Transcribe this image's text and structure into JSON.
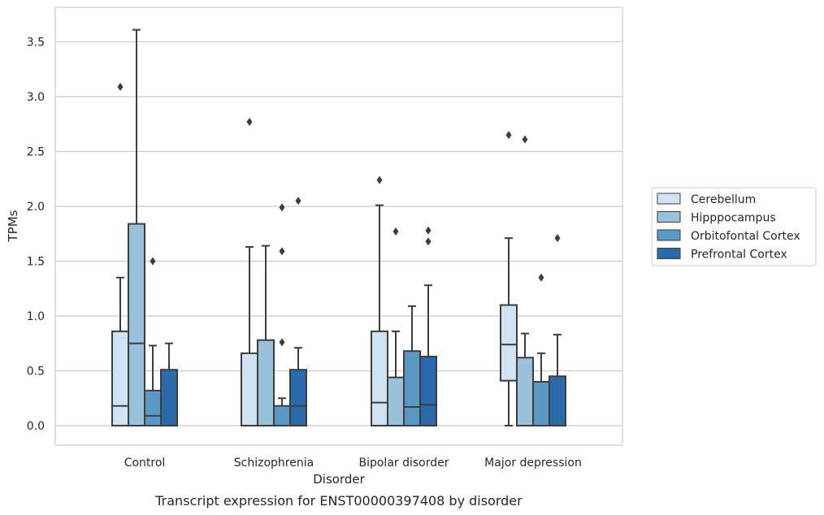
{
  "chart_data": {
    "type": "box",
    "caption": "Transcript expression for ENST00000397408 by disorder",
    "xlabel": "Disorder",
    "ylabel": "TPMs",
    "ylim": [
      -0.17,
      3.77
    ],
    "yticks": [
      0.0,
      0.5,
      1.0,
      1.5,
      2.0,
      2.5,
      3.0,
      3.5
    ],
    "ytick_labels": [
      "0.0",
      "0.5",
      "1.0",
      "1.5",
      "2.0",
      "2.5",
      "3.0",
      "3.5"
    ],
    "grid": "horizontal",
    "legend_position": "right",
    "categories": [
      "Control",
      "Schizophrenia",
      "Bipolar disorder",
      "Major depression"
    ],
    "series": [
      {
        "name": "Cerebellum",
        "color": "#d1e2f2",
        "boxes": [
          {
            "whisker_low": 0.0,
            "q1": 0.0,
            "median": 0.18,
            "q3": 0.86,
            "whisker_high": 1.35,
            "outliers": [
              3.09
            ]
          },
          {
            "whisker_low": 0.0,
            "q1": 0.0,
            "median": 0.0,
            "q3": 0.66,
            "whisker_high": 1.63,
            "outliers": [
              2.77
            ]
          },
          {
            "whisker_low": 0.0,
            "q1": 0.0,
            "median": 0.21,
            "q3": 0.86,
            "whisker_high": 2.01,
            "outliers": [
              2.24
            ]
          },
          {
            "whisker_low": 0.0,
            "q1": 0.41,
            "median": 0.74,
            "q3": 1.1,
            "whisker_high": 1.71,
            "outliers": [
              2.65
            ]
          }
        ]
      },
      {
        "name": "Hipppocampus",
        "color": "#9ac2dc",
        "boxes": [
          {
            "whisker_low": 0.0,
            "q1": 0.0,
            "median": 0.75,
            "q3": 1.84,
            "whisker_high": 3.61,
            "outliers": []
          },
          {
            "whisker_low": 0.0,
            "q1": 0.0,
            "median": 0.0,
            "q3": 0.78,
            "whisker_high": 1.64,
            "outliers": []
          },
          {
            "whisker_low": 0.0,
            "q1": 0.0,
            "median": 0.0,
            "q3": 0.44,
            "whisker_high": 0.86,
            "outliers": [
              1.77
            ]
          },
          {
            "whisker_low": 0.0,
            "q1": 0.0,
            "median": 0.0,
            "q3": 0.62,
            "whisker_high": 0.84,
            "outliers": [
              2.61
            ]
          }
        ]
      },
      {
        "name": "Orbitofontal Cortex",
        "color": "#5a99c5",
        "boxes": [
          {
            "whisker_low": 0.0,
            "q1": 0.0,
            "median": 0.09,
            "q3": 0.32,
            "whisker_high": 0.73,
            "outliers": [
              1.5
            ]
          },
          {
            "whisker_low": 0.0,
            "q1": 0.0,
            "median": 0.0,
            "q3": 0.18,
            "whisker_high": 0.25,
            "outliers": [
              0.76,
              1.59,
              1.99
            ]
          },
          {
            "whisker_low": 0.0,
            "q1": 0.0,
            "median": 0.17,
            "q3": 0.68,
            "whisker_high": 1.09,
            "outliers": []
          },
          {
            "whisker_low": 0.0,
            "q1": 0.0,
            "median": 0.0,
            "q3": 0.4,
            "whisker_high": 0.66,
            "outliers": [
              1.35
            ]
          }
        ]
      },
      {
        "name": "Prefrontal Cortex",
        "color": "#2a6aab",
        "boxes": [
          {
            "whisker_low": 0.0,
            "q1": 0.0,
            "median": 0.0,
            "q3": 0.51,
            "whisker_high": 0.75,
            "outliers": []
          },
          {
            "whisker_low": 0.0,
            "q1": 0.0,
            "median": 0.18,
            "q3": 0.51,
            "whisker_high": 0.71,
            "outliers": [
              2.05
            ]
          },
          {
            "whisker_low": 0.0,
            "q1": 0.0,
            "median": 0.19,
            "q3": 0.63,
            "whisker_high": 1.28,
            "outliers": [
              1.68,
              1.78
            ]
          },
          {
            "whisker_low": 0.0,
            "q1": 0.0,
            "median": 0.0,
            "q3": 0.45,
            "whisker_high": 0.83,
            "outliers": [
              1.71
            ]
          }
        ]
      }
    ]
  }
}
